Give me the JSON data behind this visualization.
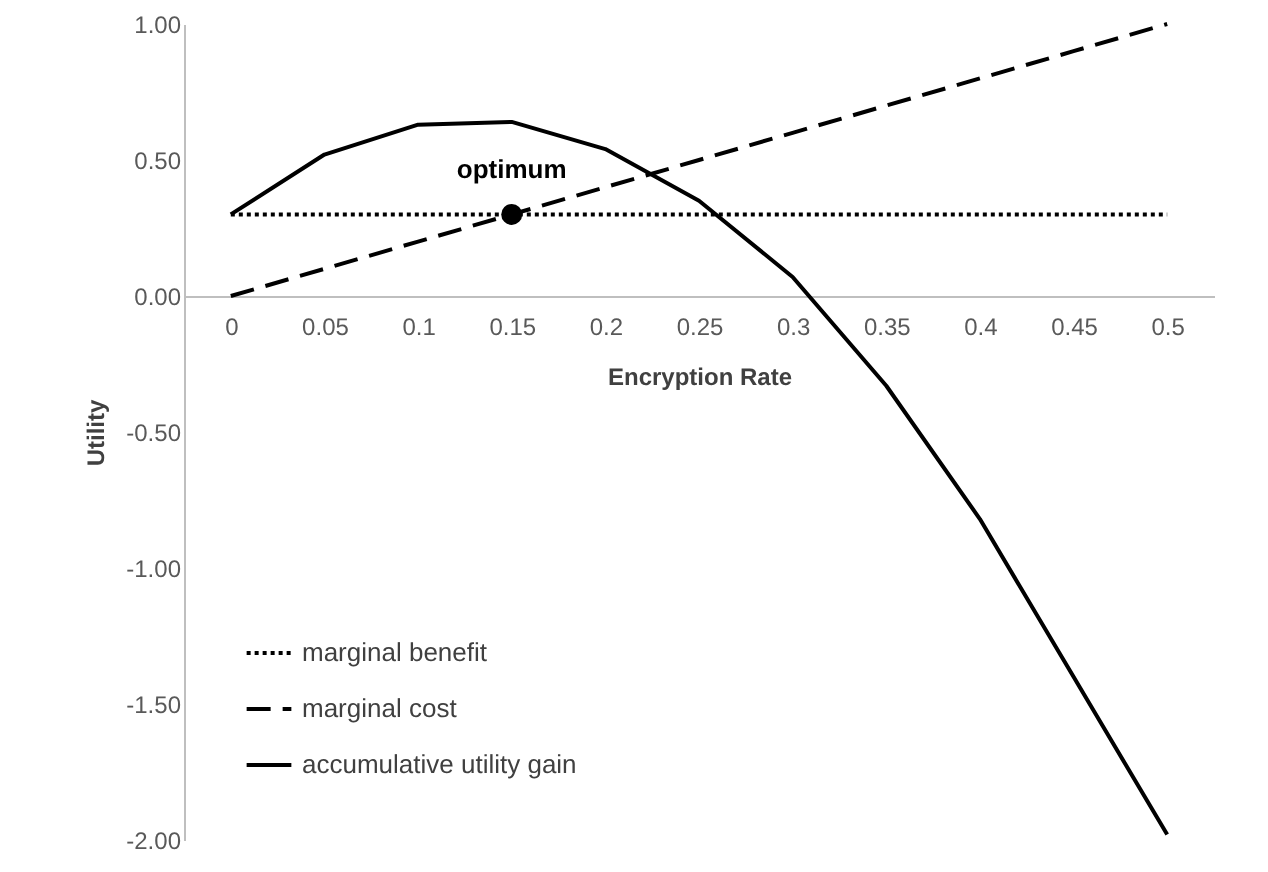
{
  "chart_data": {
    "type": "line",
    "xlabel": "Encryption Rate",
    "ylabel": "Utility",
    "categories": [
      "0",
      "0.05",
      "0.1",
      "0.15",
      "0.2",
      "0.25",
      "0.3",
      "0.35",
      "0.4",
      "0.45",
      "0.5"
    ],
    "series": [
      {
        "name": "marginal benefit",
        "color": "#000000",
        "line_style": "dotted",
        "values": [
          0.3,
          0.3,
          0.3,
          0.3,
          0.3,
          0.3,
          0.3,
          0.3,
          0.3,
          0.3,
          0.3
        ]
      },
      {
        "name": "marginal cost",
        "color": "#000000",
        "line_style": "dashed",
        "values": [
          0,
          0.1,
          0.2,
          0.3,
          0.4,
          0.5,
          0.6,
          0.7,
          0.8,
          0.9,
          1
        ]
      },
      {
        "name": "accumulative utility gain",
        "color": "#000000",
        "line_style": "solid",
        "values": [
          0.3,
          0.52,
          0.63,
          0.64,
          0.54,
          0.35,
          0.07,
          -0.33,
          -0.82,
          -1.4,
          -1.98
        ]
      },
      {
        "type": "scatter",
        "marker": "circle",
        "color": "#000000",
        "x": [
          "0.15"
        ],
        "values": [
          0.3
        ]
      }
    ],
    "annotations": [
      {
        "text": "optimum",
        "x": "0.15",
        "y": 0.3
      }
    ],
    "ylim": [
      -2,
      1
    ],
    "yticks": [
      {
        "value": -2,
        "label": "-2.00"
      },
      {
        "value": -1.5,
        "label": "-1.50"
      },
      {
        "value": -1,
        "label": "-1.00"
      },
      {
        "value": -0.5,
        "label": "-0.50"
      },
      {
        "value": 0,
        "label": "0.00"
      },
      {
        "value": 0.5,
        "label": "0.50"
      },
      {
        "value": 1,
        "label": "1.00"
      }
    ],
    "grid": false,
    "legend": "bottom left"
  }
}
